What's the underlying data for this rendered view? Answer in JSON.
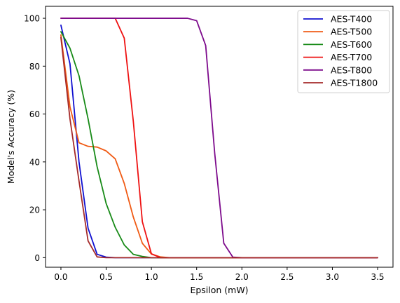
{
  "chart_data": {
    "type": "line",
    "xlabel": "Epsilon (mW)",
    "ylabel": "Model's Accuracy (%)",
    "xlim": [
      -0.17,
      3.67
    ],
    "ylim": [
      -4,
      105
    ],
    "xticks": [
      0.0,
      0.5,
      1.0,
      1.5,
      2.0,
      2.5,
      3.0,
      3.5
    ],
    "xtick_labels": [
      "0.0",
      "0.5",
      "1.0",
      "1.5",
      "2.0",
      "2.5",
      "3.0",
      "3.5"
    ],
    "yticks": [
      0,
      20,
      40,
      60,
      80,
      100
    ],
    "ytick_labels": [
      "0",
      "20",
      "40",
      "60",
      "80",
      "100"
    ],
    "grid": false,
    "legend_position": "top-right",
    "series": [
      {
        "name": "AES-T400",
        "color": "#1010d0",
        "x": [
          0.0,
          0.1,
          0.2,
          0.3,
          0.4,
          0.5,
          0.6,
          0.7,
          0.8,
          0.9,
          1.0,
          1.1,
          1.2,
          1.3,
          1.4,
          1.5,
          1.6,
          1.7,
          1.8,
          1.9,
          2.0,
          2.1,
          2.2,
          2.3,
          2.4,
          2.5,
          2.6,
          2.7,
          2.8,
          2.9,
          3.0,
          3.1,
          3.2,
          3.3,
          3.4,
          3.5
        ],
        "y": [
          97.1,
          81,
          40,
          12.3,
          1.4,
          0.2,
          0,
          0,
          0,
          0,
          0,
          0,
          0,
          0,
          0,
          0,
          0,
          0,
          0,
          0,
          0,
          0,
          0,
          0,
          0,
          0,
          0,
          0,
          0,
          0,
          0,
          0,
          0,
          0,
          0,
          0
        ]
      },
      {
        "name": "AES-T500",
        "color": "#f05a14",
        "x": [
          0.0,
          0.1,
          0.2,
          0.3,
          0.4,
          0.5,
          0.6,
          0.7,
          0.8,
          0.9,
          1.0,
          1.1,
          1.2,
          1.3,
          1.4,
          1.5,
          1.6,
          1.7,
          1.8,
          1.9,
          2.0,
          2.1,
          2.2,
          2.3,
          2.4,
          2.5,
          2.6,
          2.7,
          2.8,
          2.9,
          3.0,
          3.1,
          3.2,
          3.3,
          3.4,
          3.5
        ],
        "y": [
          93,
          63,
          48,
          46.5,
          46.2,
          44.6,
          41.3,
          31,
          17,
          6,
          1.5,
          0.3,
          0,
          0,
          0,
          0,
          0,
          0,
          0,
          0,
          0,
          0,
          0,
          0,
          0,
          0,
          0,
          0,
          0,
          0,
          0,
          0,
          0,
          0,
          0,
          0
        ]
      },
      {
        "name": "AES-T600",
        "color": "#178a17",
        "x": [
          0.0,
          0.1,
          0.2,
          0.3,
          0.4,
          0.5,
          0.6,
          0.7,
          0.8,
          0.9,
          1.0,
          1.1,
          1.2,
          1.3,
          1.4,
          1.5,
          1.6,
          1.7,
          1.8,
          1.9,
          2.0,
          2.1,
          2.2,
          2.3,
          2.4,
          2.5,
          2.6,
          2.7,
          2.8,
          2.9,
          3.0,
          3.1,
          3.2,
          3.3,
          3.4,
          3.5
        ],
        "y": [
          94.4,
          87.5,
          76,
          58,
          38,
          22.6,
          12.7,
          5.3,
          1.4,
          0.5,
          0,
          0,
          0,
          0,
          0,
          0,
          0,
          0,
          0,
          0,
          0,
          0,
          0,
          0,
          0,
          0,
          0,
          0,
          0,
          0,
          0,
          0,
          0,
          0,
          0,
          0
        ]
      },
      {
        "name": "AES-T700",
        "color": "#ee1111",
        "x": [
          0.0,
          0.1,
          0.2,
          0.3,
          0.4,
          0.5,
          0.6,
          0.7,
          0.8,
          0.9,
          1.0,
          1.1,
          1.2,
          1.3,
          1.4,
          1.5,
          1.6,
          1.7,
          1.8,
          1.9,
          2.0,
          2.1,
          2.2,
          2.3,
          2.4,
          2.5,
          2.6,
          2.7,
          2.8,
          2.9,
          3.0,
          3.1,
          3.2,
          3.3,
          3.4,
          3.5
        ],
        "y": [
          100,
          100,
          100,
          100,
          100,
          100,
          100,
          91.7,
          57,
          15,
          1.6,
          0,
          0,
          0,
          0,
          0,
          0,
          0,
          0,
          0,
          0,
          0,
          0,
          0,
          0,
          0,
          0,
          0,
          0,
          0,
          0,
          0,
          0,
          0,
          0,
          0
        ]
      },
      {
        "name": "AES-T800",
        "color": "#7d0a8c",
        "x": [
          0.0,
          0.1,
          0.2,
          0.3,
          0.4,
          0.5,
          0.6,
          0.7,
          0.8,
          0.9,
          1.0,
          1.1,
          1.2,
          1.3,
          1.4,
          1.5,
          1.6,
          1.7,
          1.8,
          1.9,
          2.0,
          2.1,
          2.2,
          2.3,
          2.4,
          2.5,
          2.6,
          2.7,
          2.8,
          2.9,
          3.0,
          3.1,
          3.2,
          3.3,
          3.4,
          3.5
        ],
        "y": [
          100,
          100,
          100,
          100,
          100,
          100,
          100,
          100,
          100,
          100,
          100,
          100,
          100,
          100,
          100,
          99,
          88.6,
          43.5,
          6,
          0.2,
          0,
          0,
          0,
          0,
          0,
          0,
          0,
          0,
          0,
          0,
          0,
          0,
          0,
          0,
          0,
          0
        ]
      },
      {
        "name": "AES-T1800",
        "color": "#a52a2a",
        "x": [
          0.0,
          0.1,
          0.2,
          0.3,
          0.4,
          0.5,
          0.6,
          0.7,
          0.8,
          0.9,
          1.0,
          1.1,
          1.2,
          1.3,
          1.4,
          1.5,
          1.6,
          1.7,
          1.8,
          1.9,
          2.0,
          2.1,
          2.2,
          2.3,
          2.4,
          2.5,
          2.6,
          2.7,
          2.8,
          2.9,
          3.0,
          3.1,
          3.2,
          3.3,
          3.4,
          3.5
        ],
        "y": [
          92,
          58,
          32,
          7,
          0.3,
          0,
          0,
          0,
          0,
          0,
          0,
          0,
          0,
          0,
          0,
          0,
          0,
          0,
          0,
          0,
          0,
          0,
          0,
          0,
          0,
          0,
          0,
          0,
          0,
          0,
          0,
          0,
          0,
          0,
          0,
          0
        ]
      }
    ]
  }
}
